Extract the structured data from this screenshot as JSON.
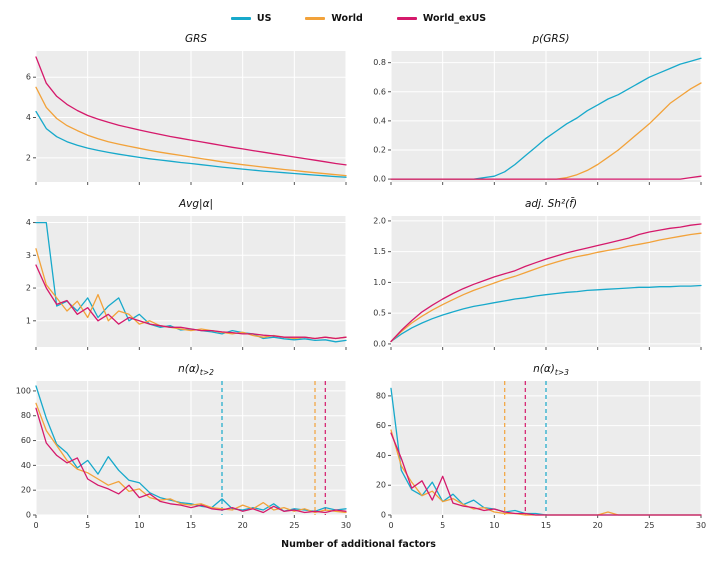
{
  "legend": {
    "items": [
      {
        "label": "US",
        "color": "#17a9cb"
      },
      {
        "label": "World",
        "color": "#f2a23a"
      },
      {
        "label": "World_exUS",
        "color": "#d5196b"
      }
    ]
  },
  "xlabel": "Number of additional factors",
  "chart_data": {
    "type": "line",
    "x": [
      0,
      1,
      2,
      3,
      4,
      5,
      6,
      7,
      8,
      9,
      10,
      11,
      12,
      13,
      14,
      15,
      16,
      17,
      18,
      19,
      20,
      21,
      22,
      23,
      24,
      25,
      26,
      27,
      28,
      29,
      30
    ],
    "xlim": [
      0,
      30
    ],
    "x_ticks": [
      0,
      5,
      10,
      15,
      20,
      25,
      30
    ],
    "series_order": [
      "US",
      "World",
      "World_exUS"
    ],
    "xlabel": "Number of additional factors",
    "legend_position": "top-center",
    "grid": true,
    "panels": [
      {
        "title": "GRS",
        "title_sub": "",
        "ylim": [
          0.8,
          7.3
        ],
        "ytick_vals": [
          2,
          4,
          6
        ],
        "ytick_labels": [
          "2",
          "4",
          "6"
        ],
        "series": {
          "US": [
            4.3,
            3.45,
            3.05,
            2.8,
            2.62,
            2.48,
            2.37,
            2.27,
            2.18,
            2.1,
            2.02,
            1.95,
            1.89,
            1.83,
            1.77,
            1.72,
            1.66,
            1.6,
            1.54,
            1.49,
            1.44,
            1.39,
            1.34,
            1.3,
            1.26,
            1.22,
            1.18,
            1.14,
            1.11,
            1.07,
            1.04
          ],
          "World": [
            5.5,
            4.5,
            3.95,
            3.6,
            3.35,
            3.12,
            2.95,
            2.8,
            2.68,
            2.57,
            2.47,
            2.37,
            2.28,
            2.2,
            2.12,
            2.04,
            1.96,
            1.88,
            1.8,
            1.73,
            1.66,
            1.6,
            1.54,
            1.48,
            1.42,
            1.37,
            1.31,
            1.26,
            1.21,
            1.16,
            1.12
          ],
          "World_exUS": [
            7.0,
            5.7,
            5.05,
            4.65,
            4.35,
            4.1,
            3.92,
            3.76,
            3.62,
            3.5,
            3.38,
            3.27,
            3.16,
            3.06,
            2.97,
            2.88,
            2.79,
            2.7,
            2.61,
            2.52,
            2.44,
            2.36,
            2.28,
            2.2,
            2.12,
            2.04,
            1.96,
            1.88,
            1.8,
            1.72,
            1.65
          ]
        }
      },
      {
        "title": "p(GRS)",
        "title_sub": "",
        "ylim": [
          -0.02,
          0.88
        ],
        "ytick_vals": [
          0.0,
          0.2,
          0.4,
          0.6,
          0.8
        ],
        "ytick_labels": [
          "0.0",
          "0.2",
          "0.4",
          "0.6",
          "0.8"
        ],
        "series": {
          "US": [
            0,
            0,
            0,
            0,
            0,
            0,
            0,
            0,
            0,
            0.01,
            0.02,
            0.05,
            0.1,
            0.16,
            0.22,
            0.28,
            0.33,
            0.38,
            0.42,
            0.47,
            0.51,
            0.55,
            0.58,
            0.62,
            0.66,
            0.7,
            0.73,
            0.76,
            0.79,
            0.81,
            0.83
          ],
          "World": [
            0,
            0,
            0,
            0,
            0,
            0,
            0,
            0,
            0,
            0,
            0,
            0,
            0,
            0,
            0,
            0,
            0,
            0.01,
            0.03,
            0.06,
            0.1,
            0.15,
            0.2,
            0.26,
            0.32,
            0.38,
            0.45,
            0.52,
            0.57,
            0.62,
            0.66
          ],
          "World_exUS": [
            0,
            0,
            0,
            0,
            0,
            0,
            0,
            0,
            0,
            0,
            0,
            0,
            0,
            0,
            0,
            0,
            0,
            0,
            0,
            0,
            0,
            0,
            0,
            0,
            0,
            0,
            0,
            0,
            0,
            0.01,
            0.02
          ]
        }
      },
      {
        "title": "Avg|α|",
        "title_sub": "",
        "ylim": [
          0.2,
          4.2
        ],
        "ytick_vals": [
          1,
          2,
          3,
          4
        ],
        "ytick_labels": [
          "1",
          "2",
          "3",
          "4"
        ],
        "series": {
          "US": [
            4.0,
            4.0,
            1.45,
            1.6,
            1.3,
            1.7,
            1.1,
            1.45,
            1.7,
            1.0,
            1.2,
            0.9,
            0.8,
            0.85,
            0.72,
            0.75,
            0.7,
            0.66,
            0.6,
            0.7,
            0.64,
            0.6,
            0.46,
            0.5,
            0.45,
            0.42,
            0.45,
            0.4,
            0.42,
            0.36,
            0.4
          ],
          "World": [
            3.2,
            2.1,
            1.7,
            1.3,
            1.6,
            1.1,
            1.8,
            1.0,
            1.3,
            1.2,
            0.9,
            1.0,
            0.85,
            0.8,
            0.75,
            0.7,
            0.75,
            0.7,
            0.65,
            0.6,
            0.65,
            0.55,
            0.5,
            0.55,
            0.5,
            0.46,
            0.5,
            0.46,
            0.5,
            0.46,
            0.5
          ],
          "World_exUS": [
            2.7,
            2.0,
            1.5,
            1.62,
            1.2,
            1.4,
            1.0,
            1.2,
            0.9,
            1.1,
            1.0,
            0.9,
            0.85,
            0.8,
            0.8,
            0.75,
            0.7,
            0.7,
            0.66,
            0.64,
            0.6,
            0.6,
            0.56,
            0.54,
            0.5,
            0.5,
            0.5,
            0.46,
            0.5,
            0.46,
            0.5
          ]
        }
      },
      {
        "title": "adj. Sh²(f̄)",
        "title_sub": "",
        "ylim": [
          -0.05,
          2.08
        ],
        "ytick_vals": [
          0.0,
          0.5,
          1.0,
          1.5,
          2.0
        ],
        "ytick_labels": [
          "0.0",
          "0.5",
          "1.0",
          "1.5",
          "2.0"
        ],
        "series": {
          "US": [
            0.04,
            0.16,
            0.26,
            0.34,
            0.41,
            0.47,
            0.52,
            0.57,
            0.61,
            0.64,
            0.67,
            0.7,
            0.73,
            0.75,
            0.78,
            0.8,
            0.82,
            0.84,
            0.85,
            0.87,
            0.88,
            0.89,
            0.9,
            0.91,
            0.92,
            0.92,
            0.93,
            0.93,
            0.94,
            0.94,
            0.95
          ],
          "World": [
            0.04,
            0.2,
            0.34,
            0.45,
            0.55,
            0.64,
            0.72,
            0.8,
            0.87,
            0.93,
            0.99,
            1.05,
            1.1,
            1.16,
            1.22,
            1.28,
            1.33,
            1.38,
            1.42,
            1.45,
            1.49,
            1.52,
            1.55,
            1.59,
            1.62,
            1.65,
            1.69,
            1.72,
            1.75,
            1.78,
            1.8
          ],
          "World_exUS": [
            0.04,
            0.22,
            0.38,
            0.52,
            0.63,
            0.73,
            0.82,
            0.9,
            0.97,
            1.03,
            1.09,
            1.14,
            1.19,
            1.26,
            1.32,
            1.38,
            1.43,
            1.48,
            1.52,
            1.56,
            1.6,
            1.64,
            1.68,
            1.72,
            1.78,
            1.82,
            1.85,
            1.88,
            1.9,
            1.93,
            1.95
          ]
        }
      },
      {
        "title": "n(α)",
        "title_sub": "t>2",
        "ylim": [
          0,
          108
        ],
        "ytick_vals": [
          0,
          20,
          40,
          60,
          80,
          100
        ],
        "ytick_labels": [
          "0",
          "20",
          "40",
          "60",
          "80",
          "100"
        ],
        "vlines": [
          {
            "series": "US",
            "x": 18
          },
          {
            "series": "World",
            "x": 27
          },
          {
            "series": "World_exUS",
            "x": 28
          }
        ],
        "series": {
          "US": [
            104,
            78,
            57,
            50,
            38,
            44,
            33,
            47,
            36,
            28,
            26,
            18,
            14,
            12,
            10,
            9,
            7,
            6,
            13,
            5,
            4,
            6,
            4,
            9,
            3,
            5,
            4,
            3,
            6,
            4,
            5
          ],
          "World": [
            90,
            68,
            56,
            44,
            37,
            34,
            29,
            24,
            27,
            19,
            21,
            14,
            12,
            13,
            9,
            8,
            9,
            6,
            5,
            4,
            8,
            5,
            10,
            4,
            6,
            3,
            5,
            2,
            4,
            3,
            2
          ],
          "World_exUS": [
            86,
            58,
            48,
            42,
            46,
            29,
            24,
            21,
            17,
            24,
            14,
            17,
            11,
            9,
            8,
            6,
            8,
            5,
            4,
            6,
            3,
            5,
            2,
            7,
            3,
            4,
            2,
            3,
            2,
            4,
            3
          ]
        }
      },
      {
        "title": "n(α)",
        "title_sub": "t>3",
        "ylim": [
          0,
          90
        ],
        "ytick_vals": [
          0,
          20,
          40,
          60,
          80
        ],
        "ytick_labels": [
          "0",
          "20",
          "40",
          "60",
          "80"
        ],
        "vlines": [
          {
            "series": "World",
            "x": 11
          },
          {
            "series": "World_exUS",
            "x": 13
          },
          {
            "series": "US",
            "x": 15
          }
        ],
        "series": {
          "US": [
            85,
            30,
            17,
            13,
            22,
            9,
            14,
            7,
            10,
            5,
            4,
            2,
            3,
            1,
            1,
            0,
            0,
            0,
            0,
            0,
            0,
            0,
            0,
            0,
            0,
            0,
            0,
            0,
            0,
            0,
            0
          ],
          "World": [
            57,
            33,
            22,
            13,
            16,
            9,
            11,
            7,
            4,
            5,
            2,
            1,
            1,
            0,
            0,
            0,
            0,
            0,
            0,
            0,
            0,
            2,
            0,
            0,
            0,
            0,
            0,
            0,
            0,
            0,
            0
          ],
          "World_exUS": [
            55,
            38,
            18,
            23,
            10,
            26,
            8,
            6,
            5,
            3,
            4,
            2,
            1,
            1,
            0,
            0,
            0,
            0,
            0,
            0,
            0,
            0,
            0,
            0,
            0,
            0,
            0,
            0,
            0,
            0,
            0
          ]
        }
      }
    ]
  }
}
